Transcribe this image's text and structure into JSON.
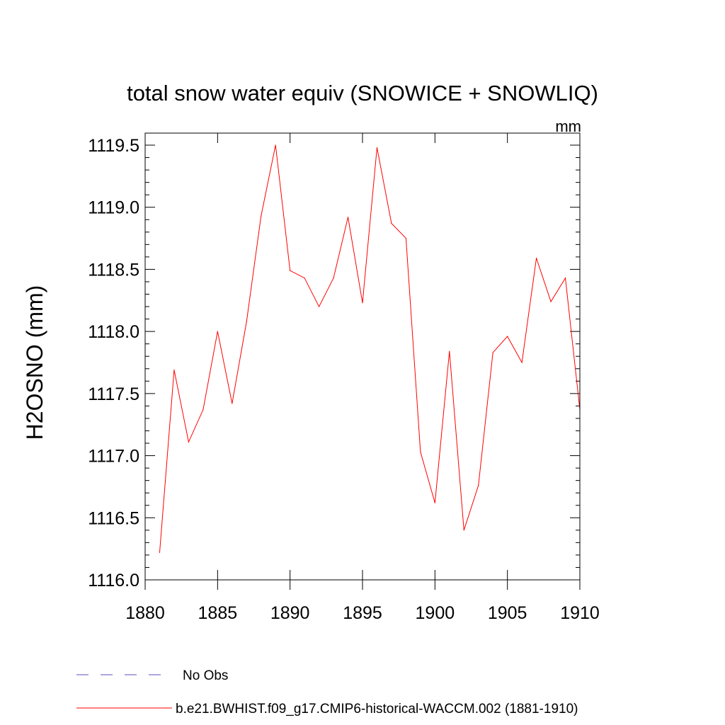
{
  "chart_data": {
    "type": "line",
    "title": "total snow water equiv (SNOWICE + SNOWLIQ)",
    "units": "mm",
    "xlabel": "",
    "ylabel": "H2OSNO  (mm)",
    "xlim": [
      1880,
      1910
    ],
    "ylim": [
      1116.0,
      1119.6
    ],
    "x_ticks": [
      1880,
      1885,
      1890,
      1895,
      1900,
      1905,
      1910
    ],
    "x_tick_labels": [
      "1880",
      "1885",
      "1890",
      "1895",
      "1900",
      "1905",
      "1910"
    ],
    "y_ticks": [
      1116.0,
      1116.5,
      1117.0,
      1117.5,
      1118.0,
      1118.5,
      1119.0,
      1119.5
    ],
    "y_tick_labels": [
      "1116.0",
      "1116.5",
      "1117.0",
      "1117.5",
      "1118.0",
      "1118.5",
      "1119.0",
      "1119.5"
    ],
    "grid": false,
    "legend_position": "bottom-left",
    "series": [
      {
        "name": "b.e21.BWHIST.f09_g17.CMIP6-historical-WACCM.002 (1881-1910)",
        "color": "#ff0000",
        "style": "solid",
        "x": [
          1881,
          1882,
          1883,
          1884,
          1885,
          1886,
          1887,
          1888,
          1889,
          1890,
          1891,
          1892,
          1893,
          1894,
          1895,
          1896,
          1897,
          1898,
          1899,
          1900,
          1901,
          1902,
          1903,
          1904,
          1905,
          1906,
          1907,
          1908,
          1909,
          1910
        ],
        "values": [
          1116.22,
          1117.69,
          1117.11,
          1117.37,
          1118.0,
          1117.42,
          1118.08,
          1118.93,
          1119.5,
          1118.49,
          1118.43,
          1118.2,
          1118.43,
          1118.92,
          1118.23,
          1119.48,
          1118.87,
          1118.75,
          1117.03,
          1116.62,
          1117.84,
          1116.4,
          1116.76,
          1117.83,
          1117.96,
          1117.75,
          1118.59,
          1118.24,
          1118.43,
          1117.37
        ]
      },
      {
        "name": "No Obs",
        "color": "#5a4fbf",
        "style": "dashed",
        "x": [],
        "values": []
      }
    ]
  }
}
